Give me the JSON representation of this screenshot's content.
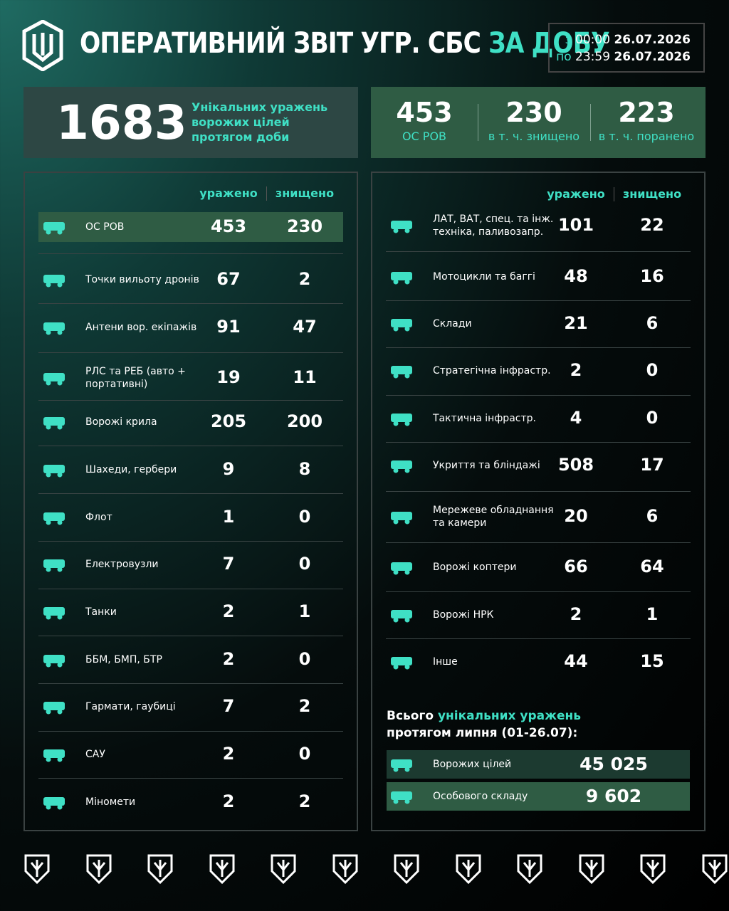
{
  "header": {
    "title_main": "ОПЕРАТИВНИЙ ЗВІТ УГР. СБС",
    "title_accent": "ЗА ДОБУ",
    "from_label": "з",
    "from_time": "00:00",
    "from_date": "26.07.2026",
    "to_label": "по",
    "to_time": "23:59",
    "to_date": "26.07.2026"
  },
  "summary": {
    "total": 1683,
    "total_label": "Унікальних уражень ворожих цілей протягом доби",
    "stats": [
      {
        "value": 453,
        "label": "ОС РОВ"
      },
      {
        "value": 230,
        "label": "в т. ч. знищено"
      },
      {
        "value": 223,
        "label": "в т. ч. поранено"
      }
    ]
  },
  "left_table": {
    "columns": [
      "уражено",
      "знищено"
    ],
    "rows": [
      {
        "label": "ОС РОВ",
        "hit": 453,
        "destroyed": 230
      },
      {
        "label": "Точки вильоту дронів",
        "hit": 67,
        "destroyed": 2
      },
      {
        "label": "Антени вор. екіпажів",
        "hit": 91,
        "destroyed": 47
      },
      {
        "label": "РЛС та РЕБ (авто + портативні)",
        "hit": 19,
        "destroyed": 11
      },
      {
        "label": "Ворожі крила",
        "hit": 205,
        "destroyed": 200
      },
      {
        "label": "Шахеди, гербери",
        "hit": 9,
        "destroyed": 8
      },
      {
        "label": "Флот",
        "hit": 1,
        "destroyed": 0
      },
      {
        "label": "Електровузли",
        "hit": 7,
        "destroyed": 0
      },
      {
        "label": "Танки",
        "hit": 2,
        "destroyed": 1
      },
      {
        "label": "ББМ, БМП, БТР",
        "hit": 2,
        "destroyed": 0
      },
      {
        "label": "Гармати, гаубиці",
        "hit": 7,
        "destroyed": 2
      },
      {
        "label": "САУ",
        "hit": 2,
        "destroyed": 0
      },
      {
        "label": "Міномети",
        "hit": 2,
        "destroyed": 2
      }
    ]
  },
  "right_table": {
    "columns": [
      "уражено",
      "знищено"
    ],
    "rows": [
      {
        "label": "ЛАТ, ВАТ, спец. та інж. техніка, паливозапр.",
        "hit": 101,
        "destroyed": 22
      },
      {
        "label": "Мотоцикли та баггі",
        "hit": 48,
        "destroyed": 16
      },
      {
        "label": "Склади",
        "hit": 21,
        "destroyed": 6
      },
      {
        "label": "Стратегічна інфрастр.",
        "hit": 2,
        "destroyed": 0
      },
      {
        "label": "Тактична інфрастр.",
        "hit": 4,
        "destroyed": 0
      },
      {
        "label": "Укриття та бліндажі",
        "hit": 508,
        "destroyed": 17
      },
      {
        "label": "Мережеве обладнання та камери",
        "hit": 20,
        "destroyed": 6
      },
      {
        "label": "Ворожі коптери",
        "hit": 66,
        "destroyed": 64
      },
      {
        "label": "Ворожі НРК",
        "hit": 2,
        "destroyed": 1
      },
      {
        "label": "Інше",
        "hit": 44,
        "destroyed": 15
      }
    ]
  },
  "monthly": {
    "title_start": "Всього",
    "title_accent": "унікальних уражень",
    "title_end": "протягом липня (01-26.07):",
    "rows": [
      {
        "label": "Ворожих цілей",
        "value": {
          "value": 45025,
          "label": "45 025"
        }
      },
      {
        "label": "Особового складу",
        "value": {
          "value": 9602,
          "label": "9 602"
        }
      }
    ]
  }
}
